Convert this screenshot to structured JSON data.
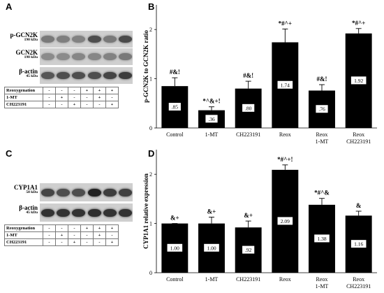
{
  "panels": {
    "A": {
      "letter": "A",
      "blots": [
        {
          "name": "p-GCN2K",
          "kda": "190 kDa",
          "intensity": [
            0.45,
            0.42,
            0.4,
            0.7,
            0.45,
            0.72
          ]
        },
        {
          "name": "GCN2K",
          "kda": "190 kDa",
          "intensity": [
            0.35,
            0.35,
            0.38,
            0.38,
            0.4,
            0.45
          ]
        },
        {
          "name": "β-actin",
          "kda": "45 kDa",
          "intensity": [
            0.65,
            0.7,
            0.7,
            0.7,
            0.75,
            0.8
          ]
        }
      ],
      "conditions": [
        {
          "label": "Reoxygenation",
          "marks": [
            "-",
            "-",
            "-",
            "+",
            "+",
            "+"
          ]
        },
        {
          "label": "1-MT",
          "marks": [
            "-",
            "+",
            "-",
            "-",
            "+",
            "-"
          ]
        },
        {
          "label": "CH223191",
          "marks": [
            "-",
            "-",
            "+",
            "-",
            "-",
            "+"
          ]
        }
      ]
    },
    "C": {
      "letter": "C",
      "blots": [
        {
          "name": "CYP1A1",
          "kda": "58 kDa",
          "intensity": [
            0.75,
            0.7,
            0.7,
            0.95,
            0.8,
            0.78
          ]
        },
        {
          "name": "β-actin",
          "kda": "45 kDa",
          "intensity": [
            0.85,
            0.85,
            0.85,
            0.88,
            0.85,
            0.85
          ]
        }
      ],
      "conditions": [
        {
          "label": "Reoxygenation",
          "marks": [
            "-",
            "-",
            "-",
            "+",
            "+",
            "+"
          ]
        },
        {
          "label": "1-MT",
          "marks": [
            "-",
            "+",
            "-",
            "-",
            "+",
            "-"
          ]
        },
        {
          "label": "CH223191",
          "marks": [
            "-",
            "-",
            "+",
            "-",
            "-",
            "+"
          ]
        }
      ]
    }
  },
  "chart_data": [
    {
      "panel": "B",
      "type": "bar",
      "ylabel": "p-GCN2K to GCN2K ratio",
      "ylim": [
        0,
        2.5
      ],
      "yticks": [
        0,
        1,
        2
      ],
      "categories": [
        [
          "Control"
        ],
        [
          "1-MT"
        ],
        [
          "CH223191"
        ],
        [
          "Reox"
        ],
        [
          "Reox",
          "1-MT"
        ],
        [
          "Reox",
          "CH223191"
        ]
      ],
      "values": [
        0.85,
        0.36,
        0.8,
        1.74,
        0.76,
        1.92
      ],
      "errors": [
        0.17,
        0.07,
        0.15,
        0.27,
        0.12,
        0.1
      ],
      "value_labels": [
        ".85",
        ".36",
        ".80",
        "1.74",
        ".76",
        "1.92"
      ],
      "significance": [
        "#&!",
        "*^&+!",
        "#&!",
        "*#^+",
        "#&!",
        "*#^+"
      ],
      "bar_color": "#000000"
    },
    {
      "panel": "D",
      "type": "bar",
      "ylabel": "CYP1A1 relative expression",
      "ylim": [
        0,
        2.5
      ],
      "yticks": [
        0,
        1,
        2
      ],
      "categories": [
        [
          "Control"
        ],
        [
          "1-MT"
        ],
        [
          "CH223191"
        ],
        [
          "Reox"
        ],
        [
          "Reox",
          "1-MT"
        ],
        [
          "Reox",
          "CH223191"
        ]
      ],
      "values": [
        1.0,
        1.0,
        0.92,
        2.09,
        1.38,
        1.16
      ],
      "errors": [
        0.0,
        0.13,
        0.13,
        0.1,
        0.13,
        0.09
      ],
      "value_labels": [
        "1.00",
        "1.00",
        ".92",
        "2.09",
        "1.38",
        "1.16"
      ],
      "significance": [
        "&+",
        "&+",
        "&+",
        "*#^+!",
        "*#^&",
        "&"
      ],
      "bar_color": "#000000"
    }
  ]
}
